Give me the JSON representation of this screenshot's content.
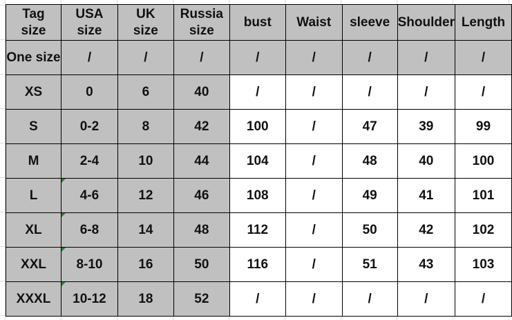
{
  "size_chart": {
    "headers": [
      "Tag\nsize",
      "USA\nsize",
      "UK\nsize",
      "Russia\nsize",
      "bust",
      "Waist",
      "sleeve",
      "Shoulder",
      "Length"
    ],
    "rows": [
      [
        "One size",
        "/",
        "/",
        "/",
        "/",
        "/",
        "/",
        "/",
        "/"
      ],
      [
        "XS",
        "0",
        "6",
        "40",
        "/",
        "/",
        "/",
        "/",
        "/"
      ],
      [
        "S",
        "0-2",
        "8",
        "42",
        "100",
        "/",
        "47",
        "39",
        "99"
      ],
      [
        "M",
        "2-4",
        "10",
        "44",
        "104",
        "/",
        "48",
        "40",
        "100"
      ],
      [
        "L",
        "4-6",
        "12",
        "46",
        "108",
        "/",
        "49",
        "41",
        "101"
      ],
      [
        "XL",
        "6-8",
        "14",
        "48",
        "112",
        "/",
        "50",
        "42",
        "102"
      ],
      [
        "XXL",
        "8-10",
        "16",
        "50",
        "116",
        "/",
        "51",
        "43",
        "103"
      ],
      [
        "XXXL",
        "10-12",
        "18",
        "52",
        "/",
        "/",
        "/",
        "/",
        "/"
      ]
    ]
  },
  "colors": {
    "header_fill": "#c0c0c0",
    "cell_fill": "#ffffff",
    "border": "#000000",
    "comment_marker": "#1e8a2e"
  }
}
